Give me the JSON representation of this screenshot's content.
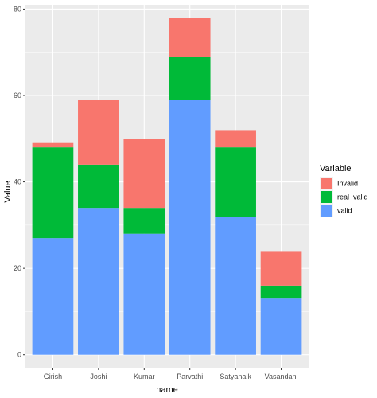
{
  "chart_data": {
    "type": "bar",
    "stacked": true,
    "categories": [
      "Girish",
      "Joshi",
      "Kumar",
      "Parvathi",
      "Satyanaik",
      "Vasandani"
    ],
    "series": [
      {
        "name": "valid",
        "color": "#619CFF",
        "values": [
          27,
          34,
          28,
          59,
          32,
          13
        ]
      },
      {
        "name": "real_valid",
        "color": "#00BA38",
        "values": [
          21,
          10,
          6,
          10,
          16,
          3
        ]
      },
      {
        "name": "Invalid",
        "color": "#F8766D",
        "values": [
          1,
          15,
          16,
          9,
          4,
          8
        ]
      }
    ],
    "xlabel": "name",
    "ylabel": "Value",
    "ylim": [
      -3,
      81
    ],
    "yticks": [
      0,
      20,
      40,
      60,
      80
    ],
    "grid": true,
    "legend": {
      "title": "Variable",
      "position": "right",
      "entries": [
        {
          "label": "Invalid",
          "color": "#F8766D"
        },
        {
          "label": "real_valid",
          "color": "#00BA38"
        },
        {
          "label": "valid",
          "color": "#619CFF"
        }
      ]
    },
    "panel_background": "#EBEBEB",
    "grid_color": "#FFFFFF"
  }
}
